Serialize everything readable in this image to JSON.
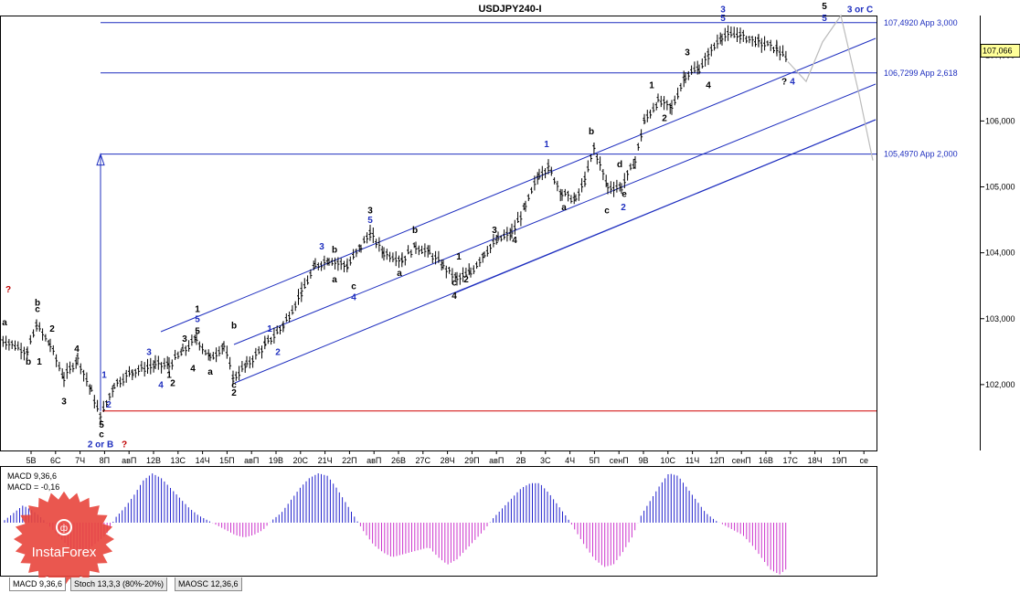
{
  "chart_data": {
    "type": "candlestick",
    "title": "USDJPY240-I",
    "price_axis": {
      "range": [
        101.0,
        107.6
      ],
      "ticks": [
        "107,000",
        "106,000",
        "105,000",
        "104,000",
        "103,000",
        "102,000"
      ],
      "current_price": "107,066"
    },
    "time_axis": {
      "labels": [
        "5В",
        "6С",
        "7Ч",
        "8П",
        "авП",
        "12В",
        "13С",
        "14Ч",
        "15П",
        "авП",
        "19В",
        "20С",
        "21Ч",
        "22П",
        "авП",
        "26В",
        "27С",
        "28Ч",
        "29П",
        "авП",
        "2В",
        "3С",
        "4Ч",
        "5П",
        "сенП",
        "9В",
        "10С",
        "11Ч",
        "12П",
        "сенП",
        "16В",
        "17С",
        "18Ч",
        "19П",
        "се"
      ]
    },
    "levels": [
      {
        "price": 107.492,
        "label": "107,4920 App 3,000"
      },
      {
        "price": 106.7299,
        "label": "106,7299 App 2,618"
      },
      {
        "price": 105.497,
        "label": "105,4970 App 2,000"
      },
      {
        "price": 101.6,
        "label": ""
      }
    ],
    "price_path": [
      [
        0,
        102.7
      ],
      [
        30,
        102.5
      ],
      [
        40,
        102.9
      ],
      [
        55,
        102.6
      ],
      [
        70,
        102.1
      ],
      [
        85,
        102.4
      ],
      [
        100,
        101.9
      ],
      [
        110,
        101.5
      ],
      [
        125,
        102.0
      ],
      [
        145,
        102.2
      ],
      [
        170,
        102.3
      ],
      [
        185,
        102.3
      ],
      [
        200,
        102.5
      ],
      [
        215,
        102.7
      ],
      [
        230,
        102.4
      ],
      [
        245,
        102.6
      ],
      [
        255,
        102.1
      ],
      [
        270,
        102.3
      ],
      [
        290,
        102.6
      ],
      [
        310,
        102.9
      ],
      [
        330,
        103.4
      ],
      [
        345,
        103.8
      ],
      [
        360,
        103.9
      ],
      [
        380,
        103.8
      ],
      [
        395,
        104.1
      ],
      [
        405,
        104.3
      ],
      [
        420,
        104.0
      ],
      [
        440,
        103.9
      ],
      [
        455,
        104.1
      ],
      [
        470,
        104.0
      ],
      [
        485,
        103.8
      ],
      [
        500,
        103.6
      ],
      [
        515,
        103.7
      ],
      [
        530,
        104.0
      ],
      [
        545,
        104.2
      ],
      [
        560,
        104.3
      ],
      [
        575,
        104.7
      ],
      [
        590,
        105.2
      ],
      [
        600,
        105.3
      ],
      [
        615,
        104.9
      ],
      [
        630,
        104.8
      ],
      [
        640,
        105.1
      ],
      [
        650,
        105.6
      ],
      [
        665,
        105.0
      ],
      [
        680,
        105.0
      ],
      [
        695,
        105.4
      ],
      [
        705,
        106.0
      ],
      [
        720,
        106.3
      ],
      [
        735,
        106.2
      ],
      [
        750,
        106.7
      ],
      [
        765,
        106.8
      ],
      [
        775,
        107.0
      ],
      [
        790,
        107.3
      ],
      [
        810,
        107.3
      ],
      [
        830,
        107.2
      ],
      [
        850,
        107.1
      ],
      [
        862,
        106.9
      ]
    ],
    "projection": [
      [
        862,
        106.9
      ],
      [
        882,
        106.6
      ],
      [
        900,
        107.2
      ],
      [
        920,
        107.6
      ],
      [
        940,
        106.4
      ],
      [
        955,
        105.4
      ]
    ],
    "wave_labels": [
      {
        "text": "?",
        "color": "#c00000",
        "at": [
          9,
          103.4
        ]
      },
      {
        "text": "b",
        "color": "#000000",
        "at": [
          41,
          103.2
        ]
      },
      {
        "text": "c",
        "color": "#000000",
        "at": [
          41,
          103.1
        ]
      },
      {
        "text": "a",
        "color": "#000000",
        "at": [
          5,
          102.9
        ]
      },
      {
        "text": "2",
        "color": "#000000",
        "at": [
          57,
          102.8
        ]
      },
      {
        "text": "b",
        "color": "#000000",
        "at": [
          31,
          102.3
        ]
      },
      {
        "text": "1",
        "color": "#000000",
        "at": [
          43,
          102.3
        ]
      },
      {
        "text": "4",
        "color": "#000000",
        "at": [
          84,
          102.5
        ]
      },
      {
        "text": "3",
        "color": "#000000",
        "at": [
          70,
          101.7
        ]
      },
      {
        "text": "5",
        "color": "#000000",
        "at": [
          111,
          101.35
        ]
      },
      {
        "text": "c",
        "color": "#000000",
        "at": [
          111,
          101.2
        ]
      },
      {
        "text": "2 or B",
        "color": "#1f2fbf",
        "at": [
          110,
          101.05
        ]
      },
      {
        "text": "?",
        "color": "#c00000",
        "at": [
          136,
          101.05
        ]
      },
      {
        "text": "1",
        "color": "#1f2fbf",
        "at": [
          114,
          102.1
        ]
      },
      {
        "text": "2",
        "color": "#1f2fbf",
        "at": [
          119,
          101.65
        ]
      },
      {
        "text": "3",
        "color": "#1f2fbf",
        "at": [
          163,
          102.45
        ]
      },
      {
        "text": "4",
        "color": "#1f2fbf",
        "at": [
          176,
          101.95
        ]
      },
      {
        "text": "1",
        "color": "#000000",
        "at": [
          185,
          102.1
        ]
      },
      {
        "text": "2",
        "color": "#000000",
        "at": [
          189,
          101.98
        ]
      },
      {
        "text": "3",
        "color": "#000000",
        "at": [
          202,
          102.65
        ]
      },
      {
        "text": "1",
        "color": "#000000",
        "at": [
          216,
          103.1
        ]
      },
      {
        "text": "5",
        "color": "#1f2fbf",
        "at": [
          216,
          102.95
        ]
      },
      {
        "text": "5",
        "color": "#000000",
        "at": [
          216,
          102.77
        ]
      },
      {
        "text": "4",
        "color": "#000000",
        "at": [
          211,
          102.2
        ]
      },
      {
        "text": "a",
        "color": "#000000",
        "at": [
          230,
          102.15
        ]
      },
      {
        "text": "b",
        "color": "#000000",
        "at": [
          256,
          102.85
        ]
      },
      {
        "text": "c",
        "color": "#000000",
        "at": [
          256,
          101.95
        ]
      },
      {
        "text": "2",
        "color": "#000000",
        "at": [
          256,
          101.83
        ]
      },
      {
        "text": "1",
        "color": "#1f2fbf",
        "at": [
          295,
          102.8
        ]
      },
      {
        "text": "2",
        "color": "#1f2fbf",
        "at": [
          304,
          102.45
        ]
      },
      {
        "text": "3",
        "color": "#1f2fbf",
        "at": [
          352,
          104.05
        ]
      },
      {
        "text": "b",
        "color": "#000000",
        "at": [
          366,
          104.0
        ]
      },
      {
        "text": "a",
        "color": "#000000",
        "at": [
          366,
          103.55
        ]
      },
      {
        "text": "c",
        "color": "#000000",
        "at": [
          387,
          103.45
        ]
      },
      {
        "text": "4",
        "color": "#1f2fbf",
        "at": [
          387,
          103.28
        ]
      },
      {
        "text": "3",
        "color": "#000000",
        "at": [
          405,
          104.6
        ]
      },
      {
        "text": "5",
        "color": "#1f2fbf",
        "at": [
          405,
          104.45
        ]
      },
      {
        "text": "b",
        "color": "#000000",
        "at": [
          454,
          104.3
        ]
      },
      {
        "text": "a",
        "color": "#000000",
        "at": [
          437,
          103.65
        ]
      },
      {
        "text": "1",
        "color": "#000000",
        "at": [
          502,
          103.9
        ]
      },
      {
        "text": "c",
        "color": "#000000",
        "at": [
          497,
          103.5
        ]
      },
      {
        "text": "2",
        "color": "#000000",
        "at": [
          510,
          103.55
        ]
      },
      {
        "text": "4",
        "color": "#000000",
        "at": [
          497,
          103.3
        ]
      },
      {
        "text": "3",
        "color": "#000000",
        "at": [
          541,
          104.3
        ]
      },
      {
        "text": "4",
        "color": "#000000",
        "at": [
          563,
          104.15
        ]
      },
      {
        "text": "1",
        "color": "#1f2fbf",
        "at": [
          598,
          105.6
        ]
      },
      {
        "text": "a",
        "color": "#000000",
        "at": [
          617,
          104.65
        ]
      },
      {
        "text": "b",
        "color": "#000000",
        "at": [
          647,
          105.8
        ]
      },
      {
        "text": "d",
        "color": "#000000",
        "at": [
          678,
          105.3
        ]
      },
      {
        "text": "e",
        "color": "#000000",
        "at": [
          683,
          104.85
        ]
      },
      {
        "text": "c",
        "color": "#000000",
        "at": [
          664,
          104.6
        ]
      },
      {
        "text": "2",
        "color": "#1f2fbf",
        "at": [
          682,
          104.65
        ]
      },
      {
        "text": "1",
        "color": "#000000",
        "at": [
          713,
          106.5
        ]
      },
      {
        "text": "2",
        "color": "#000000",
        "at": [
          727,
          106.0
        ]
      },
      {
        "text": "3",
        "color": "#000000",
        "at": [
          752,
          107.0
        ]
      },
      {
        "text": "4",
        "color": "#000000",
        "at": [
          775,
          106.5
        ]
      },
      {
        "text": "3",
        "color": "#1f2fbf",
        "at": [
          791,
          107.65
        ]
      },
      {
        "text": "5",
        "color": "#1f2fbf",
        "at": [
          791,
          107.52
        ]
      },
      {
        "text": "5",
        "color": "#000000",
        "at": [
          902,
          107.7
        ]
      },
      {
        "text": "5",
        "color": "#1f2fbf",
        "at": [
          902,
          107.52
        ]
      },
      {
        "text": "3 or C",
        "color": "#1f2fbf",
        "at": [
          941,
          107.65
        ]
      },
      {
        "text": "?",
        "color": "#000000",
        "at": [
          858,
          106.55
        ]
      },
      {
        "text": "4",
        "color": "#1f2fbf",
        "at": [
          867,
          106.55
        ]
      }
    ],
    "indicator": {
      "name": "MACD",
      "params": "9,36,6",
      "label_line1": "MACD 9,36,6",
      "label_line2": "MACD = -0,16",
      "histogram": [
        0.05,
        0.2,
        0.35,
        0.25,
        0.1,
        -0.1,
        -0.3,
        -0.5,
        -0.6,
        -0.55,
        -0.4,
        -0.25,
        0.1,
        0.3,
        0.55,
        0.85,
        1.0,
        0.9,
        0.7,
        0.5,
        0.3,
        0.15,
        0.05,
        -0.05,
        -0.15,
        -0.25,
        -0.3,
        -0.25,
        -0.15,
        0.05,
        0.2,
        0.45,
        0.7,
        0.9,
        1.0,
        0.95,
        0.7,
        0.4,
        0.1,
        -0.2,
        -0.45,
        -0.6,
        -0.7,
        -0.65,
        -0.6,
        -0.55,
        -0.5,
        -0.7,
        -0.85,
        -0.75,
        -0.55,
        -0.35,
        -0.15,
        0.1,
        0.3,
        0.5,
        0.7,
        0.8,
        0.8,
        0.6,
        0.35,
        0.1,
        -0.2,
        -0.5,
        -0.75,
        -0.9,
        -0.85,
        -0.6,
        -0.3,
        0.15,
        0.45,
        0.75,
        1.0,
        0.95,
        0.7,
        0.45,
        0.2,
        0.05,
        -0.05,
        -0.15,
        -0.25,
        -0.45,
        -0.7,
        -0.95,
        -1.05,
        -0.9
      ]
    }
  },
  "tabs": [
    {
      "label": "MACD 9,36,6"
    },
    {
      "label": "Stoch 13,3,3 (80%-20%)"
    },
    {
      "label": "MAOSC 12,36,6"
    }
  ],
  "logo": {
    "text": "InstaForex",
    "color": "#e8453c"
  }
}
